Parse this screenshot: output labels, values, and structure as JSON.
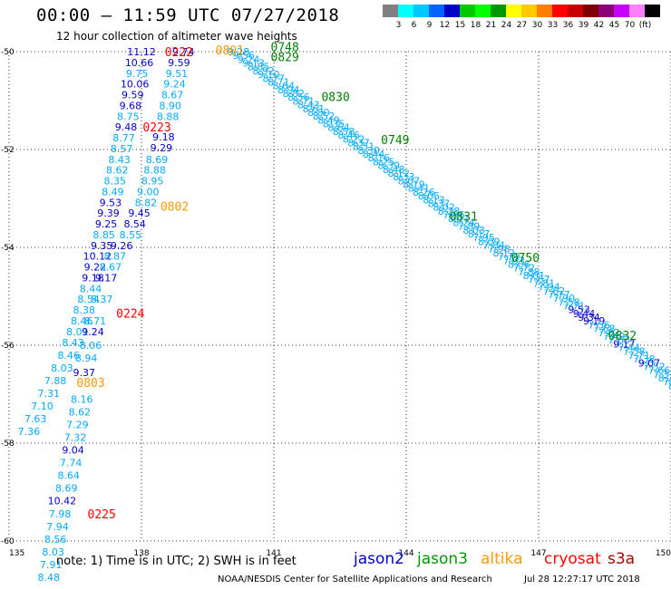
{
  "header": {
    "title": "00:00 – 11:59 UTC 07/27/2018",
    "subtitle": "12 hour collection of altimeter wave heights"
  },
  "colorbar": {
    "colors": [
      "#808080",
      "#00ffff",
      "#00c8ff",
      "#0064ff",
      "#0000c8",
      "#00c800",
      "#00ff00",
      "#009600",
      "#ffff00",
      "#ffc800",
      "#ff8000",
      "#ff0000",
      "#c80000",
      "#800000",
      "#8c0078",
      "#c800ff",
      "#ff80ff",
      "#000000"
    ],
    "labels": [
      "3",
      "6",
      "9",
      "12",
      "15",
      "18",
      "21",
      "24",
      "27",
      "30",
      "33",
      "36",
      "39",
      "42",
      "45",
      "70",
      "(ft)"
    ]
  },
  "map": {
    "lon_range": [
      135,
      150
    ],
    "lat_range": [
      -60,
      -50
    ],
    "lon_ticks": [
      "135",
      "138",
      "141",
      "144",
      "147",
      "150"
    ],
    "lat_ticks": [
      "-50",
      "-52",
      "-54",
      "-56",
      "-58",
      "-60"
    ],
    "colors": {
      "jason2": "#0000cc",
      "jason3": "#008000",
      "altika": "#ff9900",
      "cryosat": "#ff0000",
      "s3a": "#aa0000",
      "swh_light": "#00aaff",
      "swh_dark": "#0000cc"
    },
    "tracks": [
      {
        "satellite": "jason2",
        "labels": [
          {
            "text": "11.12",
            "lon": 138.0,
            "lat": -50.0,
            "c": "d"
          },
          {
            "text": "10.66",
            "lon": 137.95,
            "lat": -50.22,
            "c": "d"
          },
          {
            "text": "9.75",
            "lon": 137.9,
            "lat": -50.44,
            "c": "l"
          },
          {
            "text": "10.06",
            "lon": 137.85,
            "lat": -50.66,
            "c": "d"
          },
          {
            "text": "9.59",
            "lon": 137.8,
            "lat": -50.88,
            "c": "d"
          },
          {
            "text": "9.68",
            "lon": 137.75,
            "lat": -51.1,
            "c": "d"
          },
          {
            "text": "8.75",
            "lon": 137.7,
            "lat": -51.32,
            "c": "l"
          },
          {
            "text": "9.48",
            "lon": 137.65,
            "lat": -51.54,
            "c": "d"
          },
          {
            "text": "8.77",
            "lon": 137.6,
            "lat": -51.76,
            "c": "l"
          },
          {
            "text": "8.57",
            "lon": 137.55,
            "lat": -51.98,
            "c": "l"
          },
          {
            "text": "8.43",
            "lon": 137.5,
            "lat": -52.2,
            "c": "l"
          },
          {
            "text": "8.62",
            "lon": 137.45,
            "lat": -52.42,
            "c": "l"
          },
          {
            "text": "8.35",
            "lon": 137.4,
            "lat": -52.64,
            "c": "l"
          },
          {
            "text": "8.49",
            "lon": 137.35,
            "lat": -52.86,
            "c": "l"
          },
          {
            "text": "9.53",
            "lon": 137.3,
            "lat": -53.08,
            "c": "d"
          },
          {
            "text": "9.39",
            "lon": 137.25,
            "lat": -53.3,
            "c": "d"
          },
          {
            "text": "9.25",
            "lon": 137.2,
            "lat": -53.52,
            "c": "d"
          },
          {
            "text": "8.85",
            "lon": 137.15,
            "lat": -53.74,
            "c": "l"
          },
          {
            "text": "9.35",
            "lon": 137.1,
            "lat": -53.96,
            "c": "d"
          },
          {
            "text": "10.12",
            "lon": 137.0,
            "lat": -54.18,
            "c": "d"
          },
          {
            "text": "9.22",
            "lon": 136.95,
            "lat": -54.4,
            "c": "d"
          },
          {
            "text": "9.18",
            "lon": 136.9,
            "lat": -54.62,
            "c": "d"
          },
          {
            "text": "8.44",
            "lon": 136.85,
            "lat": -54.84,
            "c": "l"
          },
          {
            "text": "8.54",
            "lon": 136.8,
            "lat": -55.06,
            "c": "l"
          },
          {
            "text": "8.38",
            "lon": 136.7,
            "lat": -55.28,
            "c": "l"
          },
          {
            "text": "8.46",
            "lon": 136.65,
            "lat": -55.5,
            "c": "l"
          },
          {
            "text": "8.01",
            "lon": 136.55,
            "lat": -55.72,
            "c": "l"
          },
          {
            "text": "8.43",
            "lon": 136.45,
            "lat": -55.94,
            "c": "l"
          },
          {
            "text": "8.46",
            "lon": 136.35,
            "lat": -56.2,
            "c": "l"
          },
          {
            "text": "8.03",
            "lon": 136.2,
            "lat": -56.46,
            "c": "l"
          },
          {
            "text": "7.88",
            "lon": 136.05,
            "lat": -56.72,
            "c": "l"
          },
          {
            "text": "7.31",
            "lon": 135.9,
            "lat": -56.98,
            "c": "l"
          },
          {
            "text": "7.10",
            "lon": 135.75,
            "lat": -57.24,
            "c": "l"
          },
          {
            "text": "7.63",
            "lon": 135.6,
            "lat": -57.5,
            "c": "l"
          },
          {
            "text": "7.36",
            "lon": 135.45,
            "lat": -57.76,
            "c": "l"
          }
        ]
      },
      {
        "satellite": "jason2",
        "labels": [
          {
            "text": "9.74",
            "lon": 138.95,
            "lat": -50.0,
            "c": "d"
          },
          {
            "text": "9.59",
            "lon": 138.85,
            "lat": -50.22,
            "c": "d"
          },
          {
            "text": "9.51",
            "lon": 138.8,
            "lat": -50.44,
            "c": "l"
          },
          {
            "text": "9.24",
            "lon": 138.75,
            "lat": -50.66,
            "c": "l"
          },
          {
            "text": "8.67",
            "lon": 138.7,
            "lat": -50.88,
            "c": "l"
          },
          {
            "text": "8.90",
            "lon": 138.65,
            "lat": -51.1,
            "c": "l"
          },
          {
            "text": "8.88",
            "lon": 138.6,
            "lat": -51.32,
            "c": "l"
          },
          {
            "text": "9.18",
            "lon": 138.5,
            "lat": -51.74,
            "c": "d"
          },
          {
            "text": "9.29",
            "lon": 138.45,
            "lat": -51.96,
            "c": "d"
          },
          {
            "text": "8.69",
            "lon": 138.35,
            "lat": -52.2,
            "c": "l"
          },
          {
            "text": "8.88",
            "lon": 138.3,
            "lat": -52.42,
            "c": "l"
          },
          {
            "text": "8.95",
            "lon": 138.25,
            "lat": -52.64,
            "c": "l"
          },
          {
            "text": "9.00",
            "lon": 138.15,
            "lat": -52.86,
            "c": "l"
          },
          {
            "text": "8.82",
            "lon": 138.1,
            "lat": -53.08,
            "c": "l"
          },
          {
            "text": "9.45",
            "lon": 137.95,
            "lat": -53.3,
            "c": "d"
          },
          {
            "text": "8.54",
            "lon": 137.85,
            "lat": -53.52,
            "c": "d"
          },
          {
            "text": "8.55",
            "lon": 137.75,
            "lat": -53.74,
            "c": "l"
          },
          {
            "text": "9.26",
            "lon": 137.55,
            "lat": -53.96,
            "c": "d"
          },
          {
            "text": "8.87",
            "lon": 137.4,
            "lat": -54.18,
            "c": "l"
          },
          {
            "text": "8.67",
            "lon": 137.3,
            "lat": -54.4,
            "c": "l"
          },
          {
            "text": "9.17",
            "lon": 137.2,
            "lat": -54.62,
            "c": "d"
          },
          {
            "text": "8.37",
            "lon": 137.1,
            "lat": -55.06,
            "c": "l"
          },
          {
            "text": "8.71",
            "lon": 136.95,
            "lat": -55.5,
            "c": "l"
          },
          {
            "text": "9.24",
            "lon": 136.9,
            "lat": -55.72,
            "c": "d"
          },
          {
            "text": "8.06",
            "lon": 136.85,
            "lat": -56.0,
            "c": "l"
          },
          {
            "text": "8.94",
            "lon": 136.75,
            "lat": -56.26,
            "c": "l"
          },
          {
            "text": "9.37",
            "lon": 136.7,
            "lat": -56.56,
            "c": "d"
          },
          {
            "text": "8.16",
            "lon": 136.65,
            "lat": -57.1,
            "c": "l"
          },
          {
            "text": "8.62",
            "lon": 136.6,
            "lat": -57.36,
            "c": "l"
          },
          {
            "text": "7.29",
            "lon": 136.55,
            "lat": -57.62,
            "c": "l"
          },
          {
            "text": "7.32",
            "lon": 136.5,
            "lat": -57.88,
            "c": "l"
          },
          {
            "text": "9.04",
            "lon": 136.45,
            "lat": -58.14,
            "c": "d"
          },
          {
            "text": "7.74",
            "lon": 136.4,
            "lat": -58.4,
            "c": "l"
          },
          {
            "text": "8.64",
            "lon": 136.35,
            "lat": -58.66,
            "c": "l"
          },
          {
            "text": "8.69",
            "lon": 136.3,
            "lat": -58.92,
            "c": "l"
          },
          {
            "text": "10.42",
            "lon": 136.2,
            "lat": -59.18,
            "c": "d"
          },
          {
            "text": "7.98",
            "lon": 136.15,
            "lat": -59.44,
            "c": "l"
          },
          {
            "text": "7.94",
            "lon": 136.1,
            "lat": -59.7,
            "c": "l"
          },
          {
            "text": "8.56",
            "lon": 136.05,
            "lat": -59.96,
            "c": "l"
          },
          {
            "text": "8.03",
            "lon": 136.0,
            "lat": -60.22,
            "c": "l"
          },
          {
            "text": "7.91",
            "lon": 135.95,
            "lat": -60.48,
            "c": "l"
          },
          {
            "text": "8.48",
            "lon": 135.9,
            "lat": -60.74,
            "c": "l"
          }
        ]
      }
    ],
    "dense_track": {
      "start": {
        "lon": 140.2,
        "lat": -50.0
      },
      "end": {
        "lon": 150.3,
        "lat": -56.9
      },
      "values": [
        "9.28",
        "9.56",
        "9.24",
        "9.13",
        "8.85",
        "8.92",
        "9.10",
        "8.77",
        "8.71",
        "8.64",
        "8.94",
        "8.82",
        "8.56",
        "8.71",
        "8.43",
        "8.61",
        "8.80",
        "8.52",
        "8.49",
        "8.35",
        "8.64",
        "8.58",
        "8.46",
        "8.22",
        "8.37",
        "8.51",
        "8.30",
        "8.44",
        "8.16",
        "8.25",
        "8.39",
        "8.48",
        "8.12",
        "8.33",
        "8.07",
        "8.19",
        "8.41",
        "8.26",
        "8.05",
        "8.13",
        "8.37",
        "8.02",
        "8.28",
        "7.96",
        "8.11",
        "8.24",
        "7.89",
        "8.03",
        "8.17",
        "7.95",
        "8.09",
        "7.84",
        "7.98",
        "8.12",
        "7.79",
        "7.93",
        "8.06",
        "7.72",
        "7.88",
        "8.01",
        "7.67",
        "7.81",
        "7.94",
        "7.62",
        "7.77",
        "7.90",
        "7.58",
        "7.71",
        "9.53",
        "9.44",
        "9.34",
        "9.19",
        "7.56",
        "7.68",
        "7.82",
        "7.49",
        "7.63",
        "9.17",
        "7.44",
        "7.58",
        "7.71",
        "7.38",
        "9.07",
        "7.52",
        "7.66",
        "7.33",
        "8.22",
        "7.46",
        "8.40",
        "7.29"
      ],
      "dark_values": [
        "9.53",
        "9.44",
        "9.34",
        "9.19",
        "9.17",
        "9.07"
      ]
    },
    "time_labels": [
      {
        "text": "0222",
        "lon": 138.85,
        "lat": -50.0,
        "sat": "cryosat"
      },
      {
        "text": "0223",
        "lon": 138.35,
        "lat": -51.54,
        "sat": "cryosat"
      },
      {
        "text": "0224",
        "lon": 137.75,
        "lat": -55.34,
        "sat": "cryosat"
      },
      {
        "text": "0225",
        "lon": 137.1,
        "lat": -59.44,
        "sat": "cryosat"
      },
      {
        "text": "0801",
        "lon": 140.0,
        "lat": -49.96,
        "sat": "altika"
      },
      {
        "text": "0802",
        "lon": 138.75,
        "lat": -53.16,
        "sat": "altika"
      },
      {
        "text": "0803",
        "lon": 136.85,
        "lat": -56.76,
        "sat": "altika"
      },
      {
        "text": "0748",
        "lon": 141.25,
        "lat": -49.9,
        "sat": "jason3"
      },
      {
        "text": "0829",
        "lon": 141.25,
        "lat": -50.1,
        "sat": "jason3"
      },
      {
        "text": "0830",
        "lon": 142.4,
        "lat": -50.92,
        "sat": "jason3"
      },
      {
        "text": "0749",
        "lon": 143.75,
        "lat": -51.8,
        "sat": "jason3"
      },
      {
        "text": "0831",
        "lon": 145.3,
        "lat": -53.36,
        "sat": "jason3"
      },
      {
        "text": "0750",
        "lon": 146.7,
        "lat": -54.2,
        "sat": "jason3"
      },
      {
        "text": "0832",
        "lon": 148.9,
        "lat": -55.8,
        "sat": "jason3"
      }
    ]
  },
  "footer": {
    "note": "note:  1) Time is in UTC;  2) SWH is in feet",
    "legend": [
      {
        "name": "jason2",
        "color": "#0000cc"
      },
      {
        "name": "jason3",
        "color": "#009900"
      },
      {
        "name": "altika",
        "color": "#ff9900"
      },
      {
        "name": "cryosat",
        "color": "#ff0000"
      },
      {
        "name": "s3a",
        "color": "#aa0000"
      }
    ],
    "credit": "NOAA/NESDIS Center for Satellite Applications and Research",
    "timestamp": "Jul 28 12:27:17 UTC 2018"
  }
}
